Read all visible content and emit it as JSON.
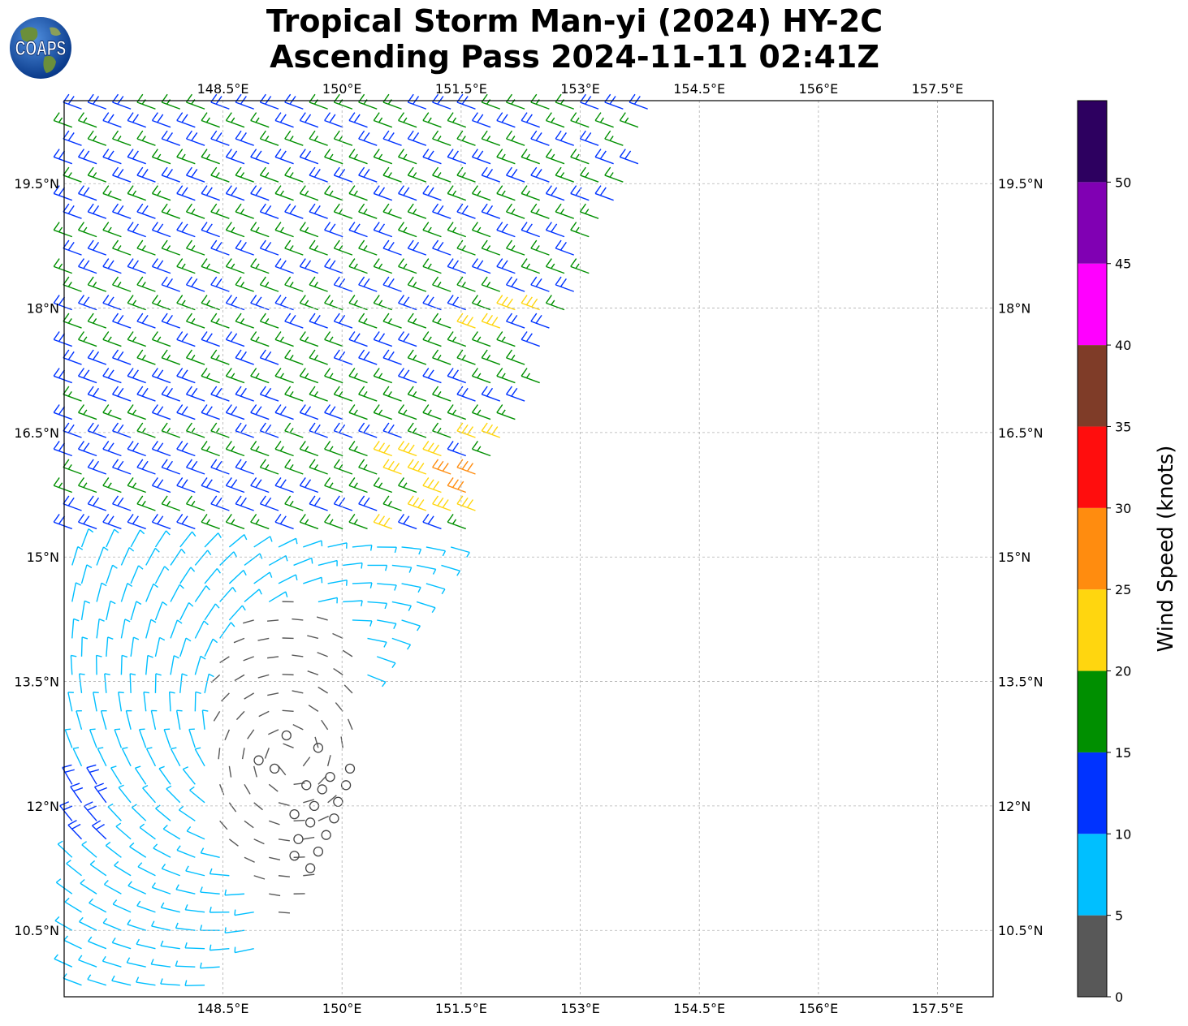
{
  "header": {
    "title_line1": "Tropical Storm Man-yi (2024) HY-2C",
    "title_line2": "Ascending Pass 2024-11-11 02:41Z",
    "logo_text": "COAPS",
    "logo_icon": "globe-icon"
  },
  "map": {
    "lon_range": [
      146.5,
      158.2
    ],
    "lat_range": [
      9.7,
      20.5
    ],
    "lon_ticks": [
      148.5,
      150,
      151.5,
      153,
      154.5,
      156,
      157.5
    ],
    "lat_ticks": [
      10.5,
      12,
      13.5,
      15,
      16.5,
      18,
      19.5
    ],
    "lon_tick_labels": [
      "148.5°E",
      "150°E",
      "151.5°E",
      "153°E",
      "154.5°E",
      "156°E",
      "157.5°E"
    ],
    "lat_tick_labels": [
      "10.5°N",
      "12°N",
      "13.5°N",
      "15°N",
      "16.5°N",
      "18°N",
      "19.5°N"
    ],
    "gridlines": true,
    "swath": {
      "note_visible": false,
      "east_edge_corners": [
        [
          154.1,
          20.5
        ],
        [
          151.5,
          15.0
        ],
        [
          150.4,
          13.5
        ],
        [
          149.5,
          11.0
        ],
        [
          148.4,
          9.7
        ]
      ]
    }
  },
  "colorbar": {
    "label": "Wind Speed (knots)",
    "orientation": "vertical",
    "bins": [
      0,
      5,
      10,
      15,
      20,
      25,
      30,
      35,
      40,
      45,
      50,
      55
    ],
    "colors": [
      "#585858",
      "#00bfff",
      "#0033ff",
      "#008f00",
      "#ffd60f",
      "#ff8c0f",
      "#ff0d0d",
      "#7f3c28",
      "#ff00ff",
      "#8000b3",
      "#2d0060"
    ],
    "tick_labels": [
      "0",
      "5",
      "10",
      "15",
      "20",
      "25",
      "30",
      "35",
      "40",
      "45",
      "50"
    ]
  },
  "chart_data": {
    "type": "wind_barbs",
    "title": "Tropical Storm Man-yi (2024) HY-2C",
    "subtitle": "Ascending Pass 2024-11-11 02:41Z",
    "units": "knots",
    "regions": [
      {
        "speed_bin": "0-5",
        "color": "#585858",
        "lon": [
          148.3,
          150.3
        ],
        "lat": [
          11.0,
          14.5
        ],
        "calm_circles": true
      },
      {
        "speed_bin": "5-10",
        "color": "#00bfff",
        "lon": [
          146.5,
          150.8
        ],
        "lat": [
          9.7,
          15.5
        ]
      },
      {
        "speed_bin": "10-15",
        "color": "#0033ff",
        "lon": [
          146.5,
          153.5
        ],
        "lat": [
          11.8,
          20.5
        ]
      },
      {
        "speed_bin": "15-20",
        "color": "#008f00",
        "lon": [
          146.5,
          154.1
        ],
        "lat": [
          15.0,
          20.5
        ]
      },
      {
        "speed_bin": "20-25",
        "color": "#ffd60f",
        "lon": [
          150.5,
          152.3
        ],
        "lat": [
          15.4,
          18.0
        ]
      },
      {
        "speed_bin": "25-30",
        "color": "#ff8c0f",
        "lon": [
          151.4,
          151.9
        ],
        "lat": [
          15.7,
          16.0
        ]
      }
    ],
    "calm_points": [
      [
        148.95,
        12.55
      ],
      [
        149.15,
        12.45
      ],
      [
        149.3,
        12.85
      ],
      [
        149.7,
        12.7
      ],
      [
        149.85,
        12.35
      ],
      [
        150.1,
        12.45
      ],
      [
        149.55,
        12.25
      ],
      [
        149.75,
        12.2
      ],
      [
        150.05,
        12.25
      ],
      [
        149.65,
        12.0
      ],
      [
        149.95,
        12.05
      ],
      [
        149.4,
        11.9
      ],
      [
        149.6,
        11.8
      ],
      [
        149.9,
        11.85
      ],
      [
        149.45,
        11.6
      ],
      [
        149.8,
        11.65
      ],
      [
        149.7,
        11.45
      ],
      [
        149.4,
        11.4
      ],
      [
        149.6,
        11.25
      ]
    ]
  }
}
